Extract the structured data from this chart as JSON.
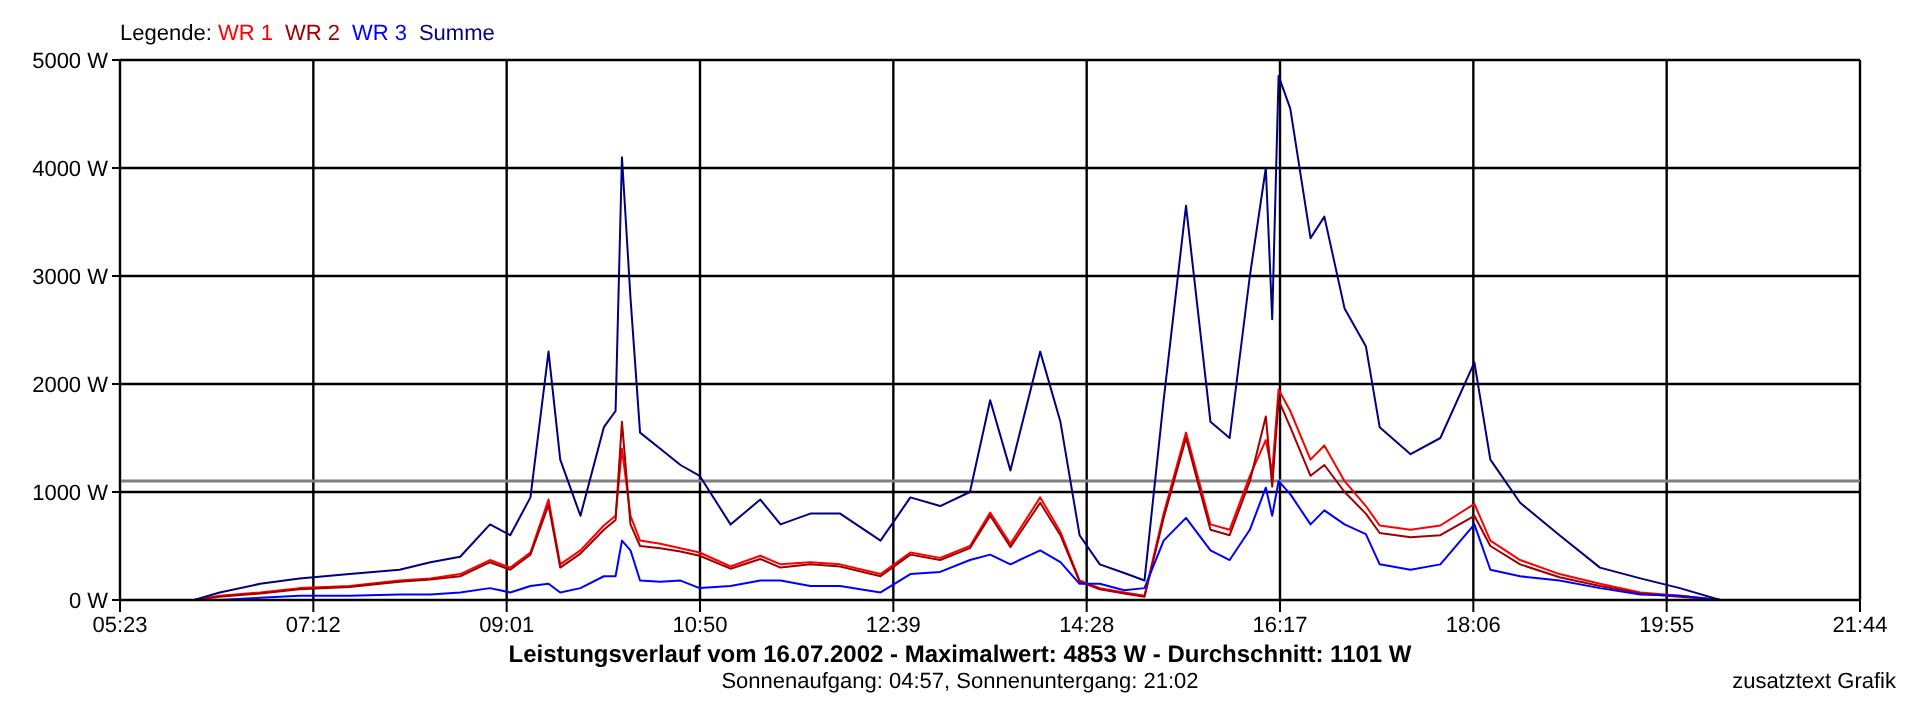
{
  "chart_data": {
    "type": "line",
    "title": "Leistungsverlauf vom 16.07.2002 - Maximalwert: 4853 W - Durchschnitt: 1101 W",
    "subtitle": "Sonnenaufgang: 04:57, Sonnenuntergang: 21:02",
    "legend_title": "Legende:",
    "annotations": [
      "zusatztext Grafik"
    ],
    "x": [
      6.08,
      6.32,
      6.7,
      7.07,
      7.54,
      8.01,
      8.3,
      8.58,
      8.86,
      9.05,
      9.24,
      9.41,
      9.52,
      9.71,
      9.93,
      10.04,
      10.1,
      10.18,
      10.27,
      10.46,
      10.65,
      10.83,
      11.12,
      11.4,
      11.59,
      11.87,
      12.15,
      12.53,
      12.81,
      13.09,
      13.37,
      13.56,
      13.75,
      14.03,
      14.22,
      14.4,
      14.59,
      14.82,
      15.01,
      15.19,
      15.4,
      15.63,
      15.81,
      16.0,
      16.15,
      16.21,
      16.27,
      16.38,
      16.57,
      16.7,
      16.89,
      17.09,
      17.22,
      17.51,
      17.79,
      18.11,
      18.26,
      18.54,
      18.91,
      19.29,
      19.67,
      20.04,
      20.42
    ],
    "series": [
      {
        "name": "WR 1",
        "color": "#ff0000",
        "values": [
          0,
          40,
          70,
          110,
          130,
          180,
          200,
          240,
          370,
          300,
          440,
          930,
          330,
          460,
          690,
          780,
          1400,
          780,
          550,
          520,
          480,
          440,
          310,
          410,
          330,
          350,
          330,
          240,
          440,
          390,
          500,
          810,
          520,
          950,
          630,
          180,
          110,
          70,
          40,
          800,
          1550,
          700,
          650,
          1150,
          1480,
          1180,
          1950,
          1750,
          1300,
          1430,
          1100,
          870,
          690,
          650,
          690,
          890,
          550,
          370,
          240,
          150,
          70,
          40,
          0
        ]
      },
      {
        "name": "WR 2",
        "color": "#a00000",
        "values": [
          0,
          30,
          60,
          100,
          120,
          170,
          190,
          220,
          350,
          280,
          420,
          880,
          300,
          430,
          650,
          740,
          1650,
          700,
          500,
          480,
          450,
          410,
          290,
          380,
          300,
          330,
          310,
          220,
          420,
          370,
          480,
          780,
          490,
          900,
          600,
          170,
          100,
          60,
          30,
          760,
          1500,
          650,
          600,
          1100,
          1700,
          1050,
          1850,
          1600,
          1150,
          1250,
          1000,
          800,
          620,
          580,
          600,
          780,
          500,
          330,
          210,
          130,
          60,
          30,
          0
        ]
      },
      {
        "name": "WR 3",
        "color": "#0000ff",
        "values": [
          0,
          0,
          20,
          40,
          40,
          50,
          50,
          70,
          110,
          70,
          130,
          150,
          70,
          110,
          220,
          220,
          550,
          460,
          180,
          170,
          180,
          110,
          130,
          180,
          180,
          130,
          130,
          70,
          240,
          260,
          370,
          420,
          330,
          460,
          350,
          150,
          150,
          90,
          110,
          550,
          760,
          460,
          370,
          650,
          1040,
          780,
          1100,
          980,
          700,
          830,
          700,
          610,
          330,
          280,
          330,
          700,
          280,
          220,
          180,
          110,
          50,
          40,
          0
        ]
      },
      {
        "name": "Summe",
        "color": "#000080",
        "values": [
          0,
          70,
          150,
          200,
          240,
          280,
          350,
          400,
          700,
          600,
          950,
          2300,
          1300,
          780,
          1600,
          1750,
          4100,
          2800,
          1550,
          1400,
          1250,
          1150,
          700,
          930,
          700,
          800,
          800,
          550,
          950,
          870,
          1000,
          1850,
          1200,
          2300,
          1650,
          600,
          330,
          250,
          180,
          1850,
          3650,
          1650,
          1500,
          3000,
          4000,
          2600,
          4853,
          4550,
          3350,
          3550,
          2700,
          2350,
          1600,
          1350,
          1500,
          2200,
          1300,
          900,
          600,
          300,
          200,
          110,
          0
        ]
      }
    ],
    "xlim": [
      5.3833,
      21.7333
    ],
    "xticks": [
      {
        "value": 5.3833,
        "label": "05:23"
      },
      {
        "value": 7.2,
        "label": "07:12"
      },
      {
        "value": 9.0167,
        "label": "09:01"
      },
      {
        "value": 10.8333,
        "label": "10:50"
      },
      {
        "value": 12.65,
        "label": "12:39"
      },
      {
        "value": 14.4667,
        "label": "14:28"
      },
      {
        "value": 16.2833,
        "label": "16:17"
      },
      {
        "value": 18.1,
        "label": "18:06"
      },
      {
        "value": 19.9167,
        "label": "19:55"
      },
      {
        "value": 21.7333,
        "label": "21:44"
      }
    ],
    "ylim": [
      0,
      5000
    ],
    "yticks": [
      {
        "value": 0,
        "label": "0 W"
      },
      {
        "value": 1000,
        "label": "1000 W"
      },
      {
        "value": 2000,
        "label": "2000 W"
      },
      {
        "value": 3000,
        "label": "3000 W"
      },
      {
        "value": 4000,
        "label": "4000 W"
      },
      {
        "value": 5000,
        "label": "5000 W"
      }
    ],
    "ref_lines": [
      {
        "axis": "y",
        "value": 1101,
        "color": "#808080"
      }
    ],
    "grid": true,
    "legend": "top left"
  }
}
